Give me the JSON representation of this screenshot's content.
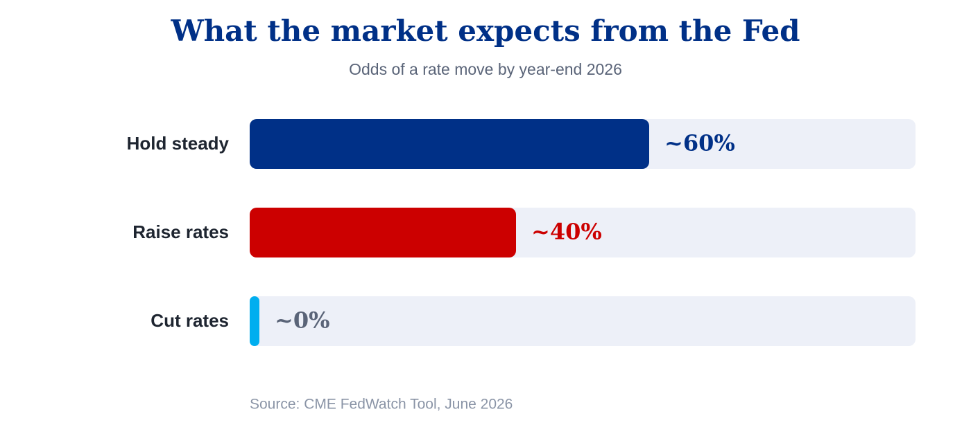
{
  "chart_data": {
    "type": "bar",
    "orientation": "horizontal",
    "title": "What the market expects from the Fed",
    "subtitle": "Odds of a rate move by year-end 2026",
    "categories": [
      "Hold steady",
      "Raise rates",
      "Cut rates"
    ],
    "values": [
      60,
      40,
      0
    ],
    "value_labels": [
      "~60%",
      "~40%",
      "~0%"
    ],
    "colors": [
      "#003087",
      "#cc0000",
      "#00aeef"
    ],
    "value_label_colors": [
      "#003087",
      "#cc0000",
      "#5a6478"
    ],
    "track_color": "#edf0f8",
    "xlim": [
      0,
      100
    ],
    "source": "Source: CME FedWatch Tool, June 2026"
  }
}
